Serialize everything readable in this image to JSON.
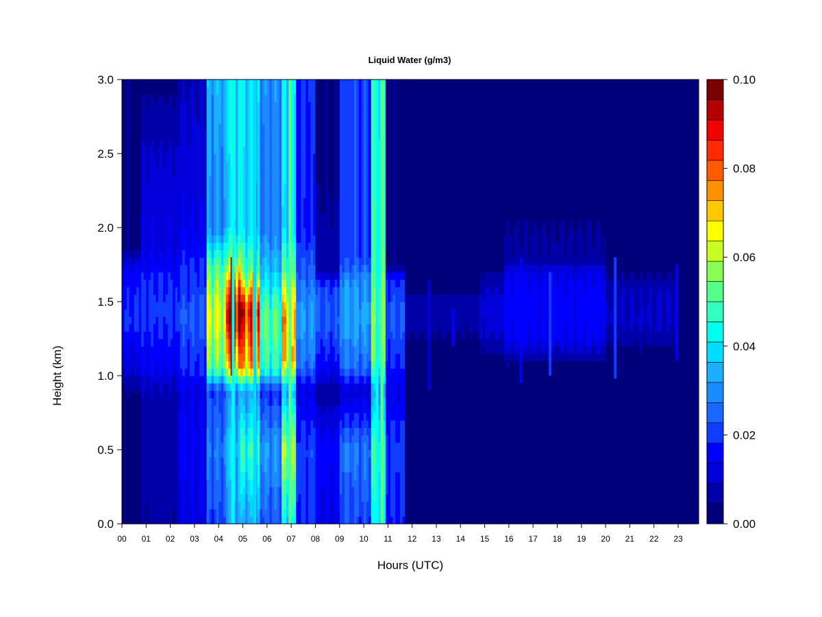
{
  "chart_data": {
    "type": "heatmap",
    "title": "Liquid Water (g/m3)",
    "xlabel": "Hours (UTC)",
    "ylabel": "Height (km)",
    "xlim": [
      0,
      23.8
    ],
    "ylim": [
      0.0,
      3.0
    ],
    "x_tick_values": [
      0,
      1,
      2,
      3,
      4,
      5,
      6,
      7,
      8,
      9,
      10,
      11,
      12,
      13,
      14,
      15,
      16,
      17,
      18,
      19,
      20,
      21,
      22,
      23
    ],
    "x_tick_labels": [
      "00",
      "01",
      "02",
      "03",
      "04",
      "05",
      "06",
      "07",
      "08",
      "09",
      "10",
      "11",
      "12",
      "13",
      "14",
      "15",
      "16",
      "17",
      "18",
      "19",
      "20",
      "21",
      "22",
      "23"
    ],
    "y_tick_values": [
      0.0,
      0.5,
      1.0,
      1.5,
      2.0,
      2.5,
      3.0
    ],
    "y_tick_labels": [
      "0.0",
      "0.5",
      "1.0",
      "1.5",
      "2.0",
      "2.5",
      "3.0"
    ],
    "colorbar": {
      "min": 0.0,
      "max": 0.1,
      "levels": 20,
      "tick_values": [
        0.0,
        0.02,
        0.04,
        0.06,
        0.08,
        0.1
      ],
      "tick_labels": [
        "0.00",
        "0.02",
        "0.04",
        "0.06",
        "0.08",
        "0.10"
      ],
      "colors": [
        "#00007a",
        "#0000a8",
        "#0000d8",
        "#0000ff",
        "#0f3cff",
        "#1a66ff",
        "#1a8cff",
        "#1ab0ff",
        "#00dcff",
        "#00ffee",
        "#33ffc0",
        "#55ff88",
        "#88ff55",
        "#c8ff22",
        "#ffff00",
        "#ffc800",
        "#ff9000",
        "#ff5a00",
        "#ff2a00",
        "#f00000",
        "#b40000",
        "#7d0000"
      ]
    },
    "columns": [
      {
        "x": [
          0.0,
          0.8
        ],
        "profile": [
          [
            0.0,
            0.003
          ],
          [
            0.9,
            0.004
          ],
          [
            0.95,
            0.006
          ],
          [
            1.05,
            0.011
          ],
          [
            1.25,
            0.014
          ],
          [
            1.35,
            0.018
          ],
          [
            1.7,
            0.015
          ],
          [
            1.85,
            0.004
          ],
          [
            3.0,
            0.004
          ]
        ]
      },
      {
        "x": [
          0.8,
          2.3
        ],
        "profile": [
          [
            0.0,
            0.005
          ],
          [
            0.7,
            0.006
          ],
          [
            0.95,
            0.009
          ],
          [
            1.05,
            0.014
          ],
          [
            1.3,
            0.017
          ],
          [
            1.45,
            0.02
          ],
          [
            1.7,
            0.016
          ],
          [
            1.85,
            0.012
          ],
          [
            2.1,
            0.012
          ],
          [
            2.5,
            0.009
          ],
          [
            3.0,
            0.003
          ]
        ]
      },
      {
        "x": [
          2.3,
          3.5
        ],
        "profile": [
          [
            0.0,
            0.012
          ],
          [
            0.6,
            0.014
          ],
          [
            0.9,
            0.012
          ],
          [
            1.05,
            0.018
          ],
          [
            1.4,
            0.022
          ],
          [
            1.7,
            0.018
          ],
          [
            2.0,
            0.013
          ],
          [
            3.0,
            0.008
          ]
        ]
      },
      {
        "x": [
          3.5,
          4.3
        ],
        "profile": [
          [
            0.0,
            0.02
          ],
          [
            0.5,
            0.026
          ],
          [
            0.9,
            0.02
          ],
          [
            1.05,
            0.05
          ],
          [
            1.4,
            0.06
          ],
          [
            1.7,
            0.05
          ],
          [
            2.0,
            0.028
          ],
          [
            3.0,
            0.032
          ]
        ]
      },
      {
        "x": [
          4.3,
          4.9
        ],
        "profile": [
          [
            0.0,
            0.032
          ],
          [
            0.5,
            0.038
          ],
          [
            0.9,
            0.03
          ],
          [
            1.05,
            0.07
          ],
          [
            1.4,
            0.098
          ],
          [
            1.6,
            0.08
          ],
          [
            1.8,
            0.055
          ],
          [
            2.0,
            0.038
          ],
          [
            3.0,
            0.042
          ]
        ]
      },
      {
        "x": [
          4.9,
          5.7
        ],
        "profile": [
          [
            0.0,
            0.03
          ],
          [
            0.5,
            0.045
          ],
          [
            0.9,
            0.03
          ],
          [
            1.05,
            0.068
          ],
          [
            1.45,
            0.085
          ],
          [
            1.7,
            0.05
          ],
          [
            2.0,
            0.036
          ],
          [
            3.0,
            0.038
          ]
        ]
      },
      {
        "x": [
          5.7,
          6.6
        ],
        "profile": [
          [
            0.0,
            0.022
          ],
          [
            0.5,
            0.03
          ],
          [
            0.9,
            0.018
          ],
          [
            1.05,
            0.045
          ],
          [
            1.4,
            0.05
          ],
          [
            1.7,
            0.035
          ],
          [
            2.0,
            0.026
          ],
          [
            3.0,
            0.028
          ]
        ]
      },
      {
        "x": [
          6.6,
          7.2
        ],
        "profile": [
          [
            0.0,
            0.038
          ],
          [
            0.5,
            0.055
          ],
          [
            0.9,
            0.032
          ],
          [
            1.1,
            0.065
          ],
          [
            1.4,
            0.07
          ],
          [
            1.7,
            0.048
          ],
          [
            2.0,
            0.036
          ],
          [
            3.0,
            0.038
          ]
        ]
      },
      {
        "x": [
          7.2,
          8.0
        ],
        "profile": [
          [
            0.0,
            0.018
          ],
          [
            0.5,
            0.02
          ],
          [
            0.9,
            0.012
          ],
          [
            1.1,
            0.026
          ],
          [
            1.4,
            0.03
          ],
          [
            1.65,
            0.024
          ],
          [
            2.0,
            0.016
          ],
          [
            3.0,
            0.018
          ]
        ]
      },
      {
        "x": [
          8.0,
          9.0
        ],
        "profile": [
          [
            0.0,
            0.012
          ],
          [
            0.5,
            0.016
          ],
          [
            0.9,
            0.006
          ],
          [
            1.05,
            0.014
          ],
          [
            1.35,
            0.022
          ],
          [
            1.6,
            0.02
          ],
          [
            1.7,
            0.006
          ],
          [
            2.3,
            0.004
          ],
          [
            3.0,
            0.004
          ]
        ]
      },
      {
        "x": [
          9.0,
          10.3
        ],
        "profile": [
          [
            0.0,
            0.02
          ],
          [
            0.5,
            0.026
          ],
          [
            0.9,
            0.01
          ],
          [
            1.05,
            0.024
          ],
          [
            1.4,
            0.032
          ],
          [
            1.65,
            0.028
          ],
          [
            1.8,
            0.02
          ],
          [
            3.0,
            0.02
          ]
        ]
      },
      {
        "x": [
          10.3,
          10.9
        ],
        "profile": [
          [
            0.0,
            0.038
          ],
          [
            0.5,
            0.045
          ],
          [
            0.9,
            0.03
          ],
          [
            1.1,
            0.05
          ],
          [
            1.4,
            0.052
          ],
          [
            1.7,
            0.045
          ],
          [
            3.0,
            0.042
          ]
        ]
      },
      {
        "x": [
          10.9,
          11.7
        ],
        "profile": [
          [
            0.0,
            0.016
          ],
          [
            0.5,
            0.02
          ],
          [
            0.9,
            0.012
          ],
          [
            1.1,
            0.018
          ],
          [
            1.4,
            0.022
          ],
          [
            1.65,
            0.018
          ],
          [
            1.75,
            0.004
          ],
          [
            3.0,
            0.004
          ]
        ]
      },
      {
        "x": [
          11.7,
          14.8
        ],
        "profile": [
          [
            0.0,
            0.002
          ],
          [
            1.2,
            0.002
          ],
          [
            1.3,
            0.005
          ],
          [
            1.5,
            0.006
          ],
          [
            1.6,
            0.003
          ],
          [
            3.0,
            0.002
          ]
        ]
      },
      {
        "x": [
          14.8,
          15.8
        ],
        "profile": [
          [
            0.0,
            0.002
          ],
          [
            1.15,
            0.004
          ],
          [
            1.3,
            0.01
          ],
          [
            1.5,
            0.011
          ],
          [
            1.65,
            0.006
          ],
          [
            1.75,
            0.002
          ],
          [
            3.0,
            0.002
          ]
        ]
      },
      {
        "x": [
          15.8,
          20.0
        ],
        "profile": [
          [
            0.0,
            0.002
          ],
          [
            1.1,
            0.004
          ],
          [
            1.25,
            0.014
          ],
          [
            1.5,
            0.016
          ],
          [
            1.7,
            0.012
          ],
          [
            1.8,
            0.005
          ],
          [
            2.3,
            0.003
          ],
          [
            2.7,
            0.004
          ],
          [
            3.0,
            0.002
          ]
        ]
      },
      {
        "x": [
          20.0,
          23.0
        ],
        "profile": [
          [
            0.0,
            0.002
          ],
          [
            1.2,
            0.004
          ],
          [
            1.35,
            0.009
          ],
          [
            1.6,
            0.008
          ],
          [
            1.7,
            0.003
          ],
          [
            3.0,
            0.002
          ]
        ]
      },
      {
        "x": [
          23.0,
          23.8
        ],
        "profile": [
          [
            0.0,
            0.002
          ],
          [
            3.0,
            0.002
          ]
        ]
      }
    ],
    "streaks": [
      {
        "x": 4.55,
        "y": [
          1.0,
          1.8
        ],
        "value": 0.098
      },
      {
        "x": 4.6,
        "y": [
          0.0,
          3.0
        ],
        "value": 0.045
      },
      {
        "x": 5.45,
        "y": [
          1.15,
          1.7
        ],
        "value": 0.075
      },
      {
        "x": 5.5,
        "y": [
          0.0,
          3.0
        ],
        "value": 0.038
      },
      {
        "x": 6.95,
        "y": [
          0.0,
          3.0
        ],
        "value": 0.05
      },
      {
        "x": 7.05,
        "y": [
          1.2,
          1.6
        ],
        "value": 0.065
      },
      {
        "x": 10.55,
        "y": [
          0.0,
          3.0
        ],
        "value": 0.042
      },
      {
        "x": 10.75,
        "y": [
          0.0,
          3.0
        ],
        "value": 0.05
      },
      {
        "x": 10.8,
        "y": [
          1.2,
          1.7
        ],
        "value": 0.055
      },
      {
        "x": 12.7,
        "y": [
          0.9,
          1.65
        ],
        "value": 0.012
      },
      {
        "x": 13.7,
        "y": [
          1.2,
          1.45
        ],
        "value": 0.016
      },
      {
        "x": 16.5,
        "y": [
          0.95,
          1.8
        ],
        "value": 0.018
      },
      {
        "x": 17.7,
        "y": [
          1.0,
          1.7
        ],
        "value": 0.02
      },
      {
        "x": 20.4,
        "y": [
          0.98,
          1.8
        ],
        "value": 0.02
      },
      {
        "x": 22.95,
        "y": [
          1.1,
          1.75
        ],
        "value": 0.014
      }
    ]
  }
}
